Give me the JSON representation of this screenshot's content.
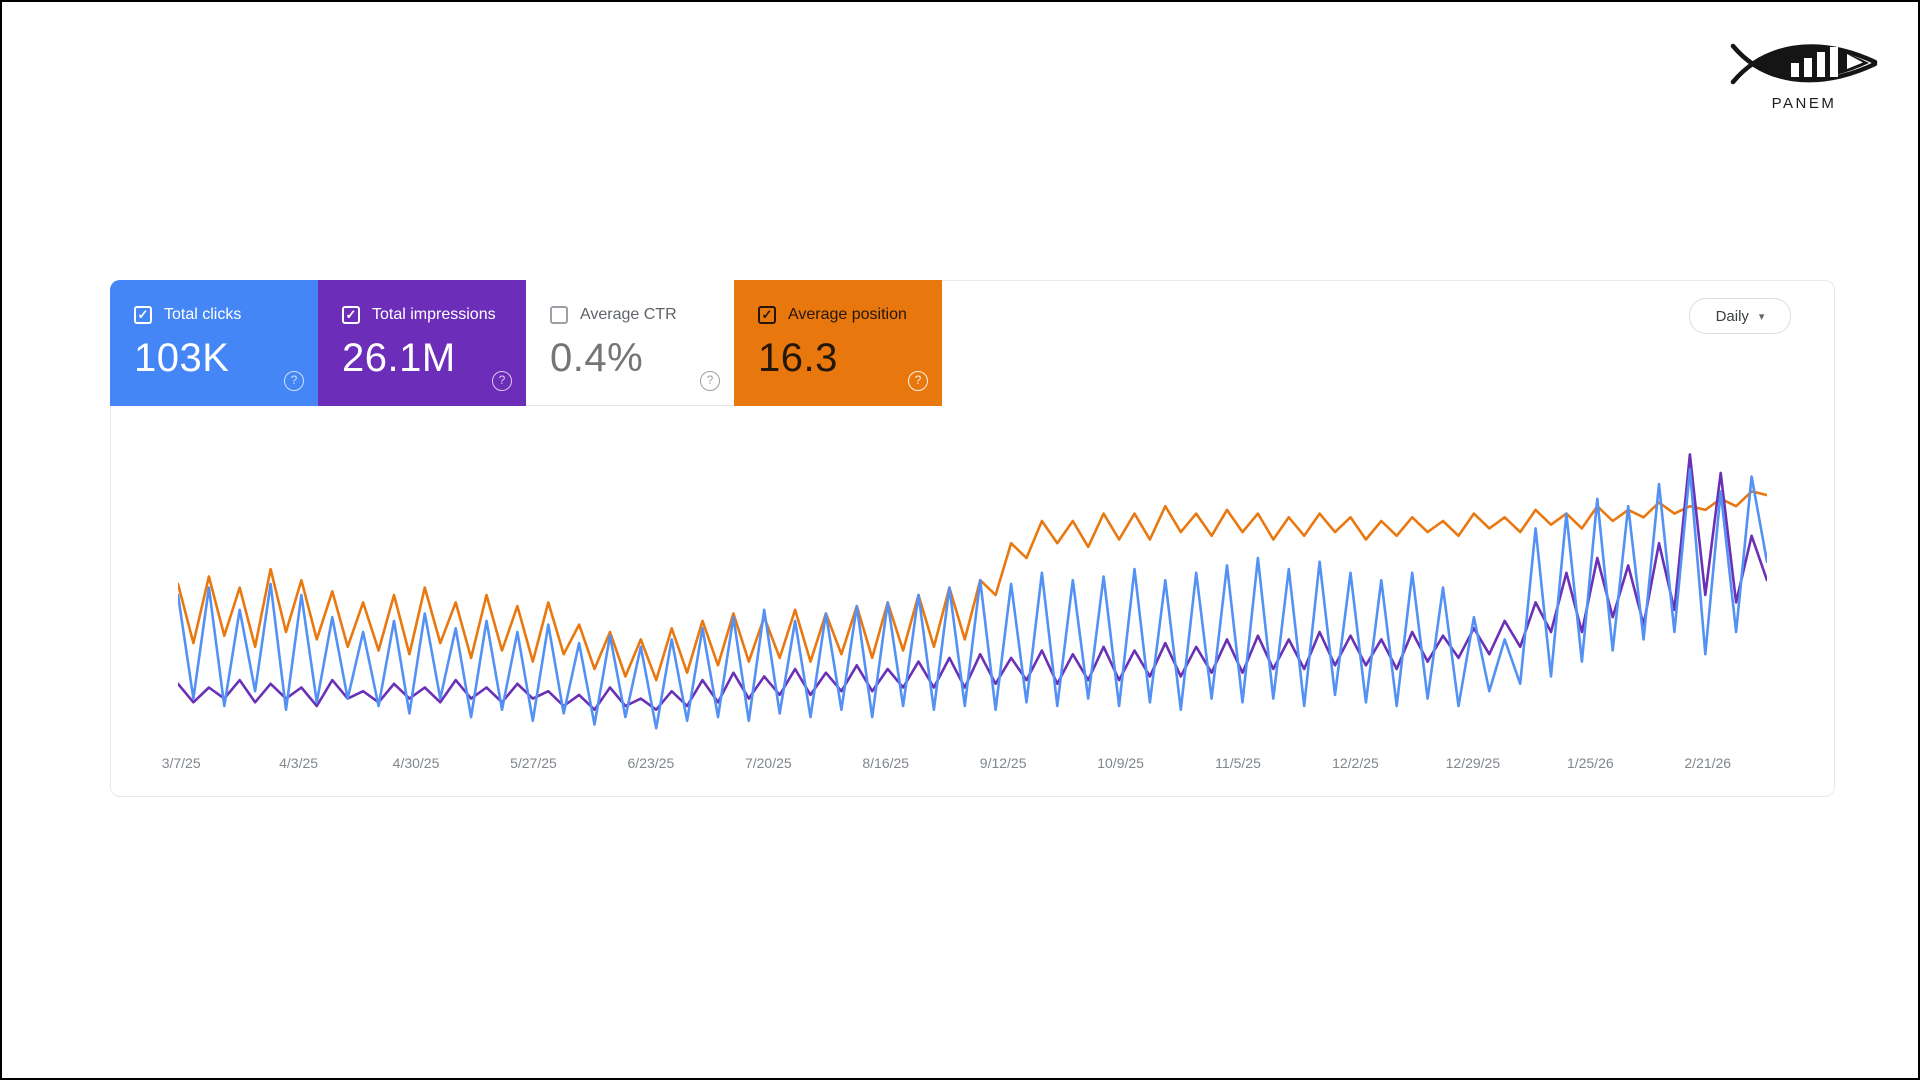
{
  "logo": {
    "brand": "PANEM"
  },
  "icons": {
    "help": "?",
    "caret_down": "▾",
    "checkbox_checked": "✓"
  },
  "controls": {
    "date_grouping": {
      "value": "Daily"
    }
  },
  "metric_cards": [
    {
      "id": "clicks",
      "label": "Total clicks",
      "value": "103K",
      "checked": true,
      "bg": "#4486f5",
      "text_color": "#ffffff",
      "value_color": "#ffffff",
      "checkbox_color": "#ffffff",
      "help_color": "rgba(255,255,255,0.75)"
    },
    {
      "id": "impressions",
      "label": "Total impressions",
      "value": "26.1M",
      "checked": true,
      "bg": "#6c2eb9",
      "text_color": "#ffffff",
      "value_color": "#ffffff",
      "checkbox_color": "#ffffff",
      "help_color": "rgba(255,255,255,0.75)"
    },
    {
      "id": "ctr",
      "label": "Average CTR",
      "value": "0.4%",
      "checked": false,
      "bg": "#ffffff",
      "text_color": "#5f6368",
      "value_color": "#757575",
      "checkbox_color": "#9aa0a6",
      "help_color": "#9aa0a6"
    },
    {
      "id": "position",
      "label": "Average position",
      "value": "16.3",
      "checked": true,
      "bg": "#e8770e",
      "text_color": "#241708",
      "value_color": "#241708",
      "checkbox_color": "#241708",
      "help_color": "rgba(255,255,255,0.9)"
    }
  ],
  "chart_data": {
    "type": "line",
    "title": "",
    "xlabel": "",
    "ylabel": "",
    "grid": false,
    "legend_position": "none (legend carried by metric cards)",
    "y_axis": "hidden - values are relative units 0-100 read from pixel heights",
    "x_tick_labels": [
      "3/7/25",
      "4/3/25",
      "4/30/25",
      "5/27/25",
      "6/23/25",
      "7/20/25",
      "8/16/25",
      "9/12/25",
      "10/9/25",
      "11/5/25",
      "12/2/25",
      "12/29/25",
      "1/25/26",
      "2/21/26"
    ],
    "x_tick_positions": [
      0.002,
      0.0759,
      0.1498,
      0.2237,
      0.2976,
      0.3715,
      0.4454,
      0.5193,
      0.5932,
      0.6671,
      0.741,
      0.8149,
      0.8888,
      0.9627
    ],
    "sampling": "2 points per week (peak/trough), Mar 2025 - early Mar 2026",
    "series": [
      {
        "name": "Total clicks",
        "color": "#5491f5",
        "values": [
          40,
          12,
          42,
          10,
          36,
          14,
          43,
          9,
          40,
          11,
          34,
          12,
          30,
          10,
          33,
          8,
          35,
          12,
          31,
          7,
          33,
          9,
          30,
          6,
          32,
          8,
          27,
          5,
          29,
          7,
          26,
          4,
          28,
          6,
          31,
          7,
          34,
          6,
          36,
          8,
          33,
          7,
          35,
          9,
          37,
          7,
          38,
          10,
          40,
          9,
          42,
          10,
          44,
          9,
          43,
          11,
          46,
          10,
          44,
          12,
          45,
          10,
          47,
          11,
          44,
          9,
          46,
          12,
          48,
          11,
          50,
          12,
          47,
          10,
          49,
          13,
          46,
          11,
          44,
          10,
          46,
          12,
          42,
          10,
          34,
          14,
          28,
          16,
          58,
          18,
          62,
          22,
          66,
          25,
          64,
          28,
          70,
          30,
          74,
          24,
          68,
          30,
          72,
          49
        ]
      },
      {
        "name": "Total impressions",
        "color": "#6a30b5",
        "values": [
          16,
          11,
          15,
          12,
          17,
          11,
          16,
          12,
          15,
          10,
          17,
          12,
          14,
          11,
          16,
          12,
          15,
          11,
          17,
          12,
          15,
          11,
          16,
          12,
          14,
          10,
          13,
          9,
          15,
          10,
          12,
          9,
          14,
          10,
          17,
          11,
          19,
          12,
          18,
          13,
          20,
          13,
          19,
          14,
          21,
          14,
          20,
          15,
          22,
          15,
          23,
          15,
          24,
          16,
          23,
          17,
          25,
          16,
          24,
          17,
          26,
          17,
          25,
          18,
          27,
          18,
          26,
          19,
          28,
          19,
          29,
          20,
          28,
          20,
          30,
          21,
          29,
          21,
          28,
          20,
          30,
          22,
          29,
          23,
          31,
          24,
          33,
          26,
          38,
          30,
          46,
          30,
          50,
          34,
          48,
          32,
          54,
          36,
          78,
          40,
          73,
          38,
          56,
          44
        ]
      },
      {
        "name": "Average position",
        "color": "#e8780f",
        "values": [
          43,
          27,
          45,
          29,
          42,
          26,
          47,
          30,
          44,
          28,
          41,
          26,
          38,
          25,
          40,
          24,
          42,
          27,
          38,
          23,
          40,
          25,
          37,
          22,
          38,
          24,
          32,
          20,
          30,
          18,
          28,
          17,
          31,
          19,
          33,
          21,
          35,
          22,
          34,
          23,
          36,
          22,
          35,
          24,
          37,
          23,
          38,
          25,
          40,
          26,
          42,
          28,
          44,
          40,
          54,
          50,
          60,
          54,
          60,
          53,
          62,
          55,
          62,
          55,
          64,
          57,
          62,
          56,
          63,
          57,
          62,
          55,
          61,
          56,
          62,
          57,
          61,
          55,
          60,
          56,
          61,
          57,
          60,
          56,
          62,
          58,
          61,
          57,
          63,
          59,
          62,
          58,
          64,
          60,
          63,
          61,
          65,
          62,
          64,
          63,
          66,
          64,
          68,
          67
        ]
      }
    ]
  }
}
